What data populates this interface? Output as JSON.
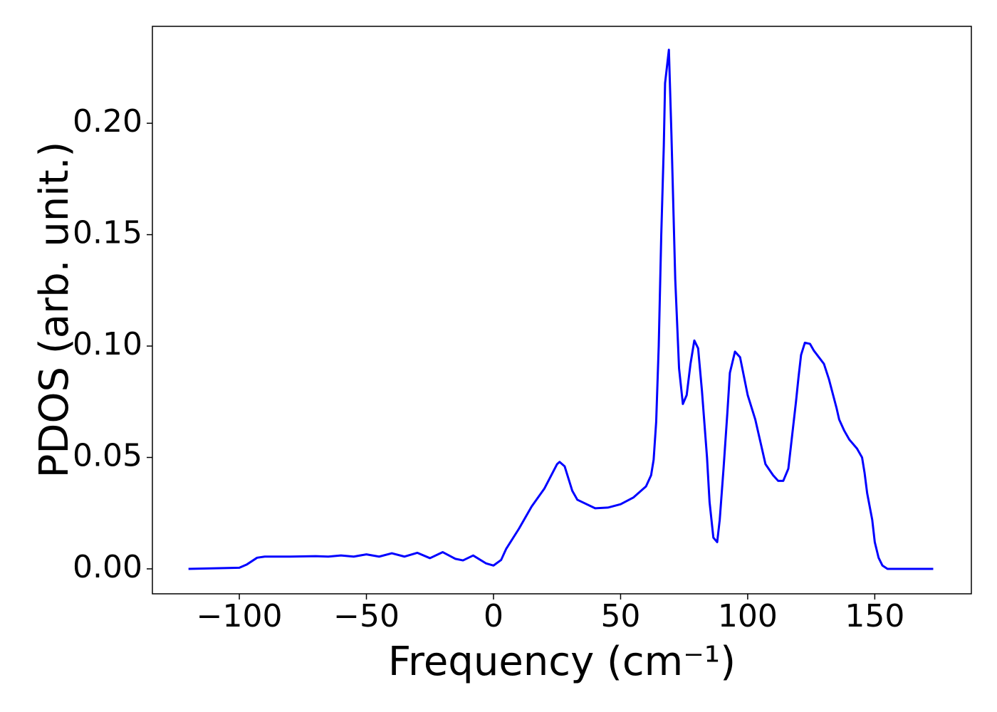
{
  "chart_data": {
    "type": "line",
    "xlabel": "Frequency (cm⁻¹)",
    "ylabel": "PDOS (arb. unit.)",
    "series": [
      {
        "name": "PDOS",
        "color": "#0000ff",
        "x": [
          -120,
          -100,
          -97,
          -93,
          -90,
          -80,
          -70,
          -65,
          -60,
          -55,
          -50,
          -45,
          -40,
          -35,
          -30,
          -25,
          -20,
          -15,
          -12,
          -8,
          -3,
          0,
          3,
          5,
          10,
          15,
          20,
          25,
          26,
          28,
          31,
          33,
          40,
          45,
          50,
          55,
          60,
          62,
          63,
          64,
          65,
          66,
          67,
          67.5,
          69,
          70,
          71.5,
          73,
          74.5,
          76,
          77.5,
          79,
          80.5,
          82,
          84,
          85,
          86.5,
          88,
          89,
          90.5,
          92,
          93,
          95,
          97,
          100,
          103,
          106,
          107,
          110,
          112,
          114,
          116,
          117,
          119,
          120,
          121,
          122.5,
          124.5,
          126,
          128,
          130,
          132,
          135,
          136,
          138,
          140,
          143,
          145,
          146,
          147,
          149,
          150,
          151.5,
          153,
          155,
          173
        ],
        "values": [
          0,
          0.0005,
          0.002,
          0.005,
          0.0055,
          0.0055,
          0.0057,
          0.0055,
          0.006,
          0.0055,
          0.0065,
          0.0055,
          0.007,
          0.0055,
          0.0072,
          0.0048,
          0.0075,
          0.0045,
          0.0038,
          0.006,
          0.0025,
          0.0015,
          0.004,
          0.009,
          0.018,
          0.028,
          0.036,
          0.047,
          0.048,
          0.046,
          0.035,
          0.031,
          0.0272,
          0.0275,
          0.029,
          0.032,
          0.037,
          0.042,
          0.049,
          0.066,
          0.1,
          0.15,
          0.19,
          0.218,
          0.233,
          0.195,
          0.13,
          0.09,
          0.074,
          0.078,
          0.092,
          0.1025,
          0.099,
          0.08,
          0.05,
          0.03,
          0.014,
          0.012,
          0.022,
          0.045,
          0.07,
          0.088,
          0.0975,
          0.095,
          0.078,
          0.067,
          0.052,
          0.047,
          0.042,
          0.0395,
          0.0395,
          0.045,
          0.055,
          0.075,
          0.086,
          0.096,
          0.1015,
          0.101,
          0.098,
          0.095,
          0.092,
          0.085,
          0.072,
          0.067,
          0.062,
          0.058,
          0.054,
          0.05,
          0.043,
          0.034,
          0.022,
          0.012,
          0.005,
          0.0015,
          0,
          0
        ]
      }
    ],
    "xlim": [
      -134.2,
      188.0
    ],
    "ylim": [
      -0.0112,
      0.2435
    ],
    "xticks": [
      {
        "value": -100,
        "label": "−100"
      },
      {
        "value": -50,
        "label": "−50"
      },
      0,
      50,
      100,
      150
    ],
    "yticks": [
      {
        "value": 0,
        "label": "0.00"
      },
      {
        "value": 0.05,
        "label": "0.05"
      },
      {
        "value": 0.1,
        "label": "0.10"
      },
      {
        "value": 0.15,
        "label": "0.15"
      },
      {
        "value": 0.2,
        "label": "0.20"
      }
    ],
    "grid": false
  }
}
